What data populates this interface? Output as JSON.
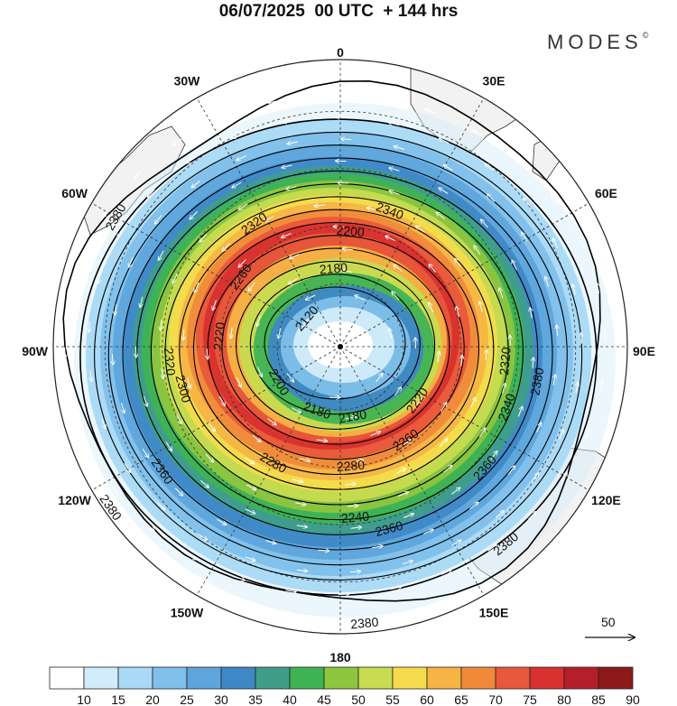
{
  "title": "06/07/2025  00 UTC  + 144 hrs",
  "brand": "MODES",
  "brand_mark": "©",
  "meridian_labels": [
    {
      "text": "0",
      "lon": 0
    },
    {
      "text": "30E",
      "lon": 30
    },
    {
      "text": "60E",
      "lon": 60
    },
    {
      "text": "90E",
      "lon": 90
    },
    {
      "text": "120E",
      "lon": 120
    },
    {
      "text": "150E",
      "lon": 150
    },
    {
      "text": "180",
      "lon": 180
    },
    {
      "text": "150W",
      "lon": -150
    },
    {
      "text": "120W",
      "lon": -120
    },
    {
      "text": "90W",
      "lon": -90
    },
    {
      "text": "60W",
      "lon": -60
    },
    {
      "text": "30W",
      "lon": -30
    }
  ],
  "contour_labels": [
    {
      "text": "2340",
      "lon": 20,
      "lat_r": 0.5
    },
    {
      "text": "2320",
      "lon": -35,
      "lat_r": 0.52
    },
    {
      "text": "2200",
      "lon": 5,
      "lat_r": 0.4
    },
    {
      "text": "2180",
      "lon": -5,
      "lat_r": 0.27
    },
    {
      "text": "2120",
      "lon": -50,
      "lat_r": 0.15
    },
    {
      "text": "2380",
      "lon": -60,
      "lat_r": 0.9
    },
    {
      "text": "2380",
      "lon": 100,
      "lat_r": 0.7
    },
    {
      "text": "2320",
      "lon": 95,
      "lat_r": 0.58
    },
    {
      "text": "2340",
      "lon": 110,
      "lat_r": 0.62
    },
    {
      "text": "2360",
      "lon": 130,
      "lat_r": 0.66
    },
    {
      "text": "2380",
      "lon": 140,
      "lat_r": 0.9
    },
    {
      "text": "2220",
      "lon": 125,
      "lat_r": 0.33
    },
    {
      "text": "2180",
      "lon": 170,
      "lat_r": 0.25
    },
    {
      "text": "2260",
      "lon": 145,
      "lat_r": 0.4
    },
    {
      "text": "2280",
      "lon": 175,
      "lat_r": 0.42
    },
    {
      "text": "2240",
      "lon": 175,
      "lat_r": 0.6
    },
    {
      "text": "2360",
      "lon": 165,
      "lat_r": 0.66
    },
    {
      "text": "2380",
      "lon": 175,
      "lat_r": 0.97
    },
    {
      "text": "2380",
      "lon": -125,
      "lat_r": 0.98
    },
    {
      "text": "2360",
      "lon": -125,
      "lat_r": 0.76
    },
    {
      "text": "2280",
      "lon": -150,
      "lat_r": 0.47
    },
    {
      "text": "2200",
      "lon": -120,
      "lat_r": 0.25
    },
    {
      "text": "2180",
      "lon": -160,
      "lat_r": 0.24
    },
    {
      "text": "2320",
      "lon": -95,
      "lat_r": 0.6
    },
    {
      "text": "2300",
      "lon": -105,
      "lat_r": 0.57
    },
    {
      "text": "2220",
      "lon": -85,
      "lat_r": 0.42
    },
    {
      "text": "2260",
      "lon": -55,
      "lat_r": 0.42
    }
  ],
  "vector_reference": {
    "label": "50"
  },
  "colorbar": {
    "values": [
      "10",
      "15",
      "20",
      "25",
      "30",
      "35",
      "40",
      "45",
      "50",
      "55",
      "60",
      "65",
      "70",
      "75",
      "80",
      "85",
      "90"
    ],
    "colors": [
      "#ffffff",
      "#d2ecfb",
      "#a9d9f5",
      "#80c0ea",
      "#5da5dc",
      "#3f88c6",
      "#3f9e8a",
      "#3fb353",
      "#8dc63f",
      "#c7dc50",
      "#f6dc4c",
      "#f6b444",
      "#f08a3a",
      "#e8583a",
      "#d8312f",
      "#b51f2a",
      "#8c1a1a"
    ]
  },
  "colors": {
    "land": "#f2f2f2",
    "contour": "#000000",
    "grid": "#333333"
  }
}
